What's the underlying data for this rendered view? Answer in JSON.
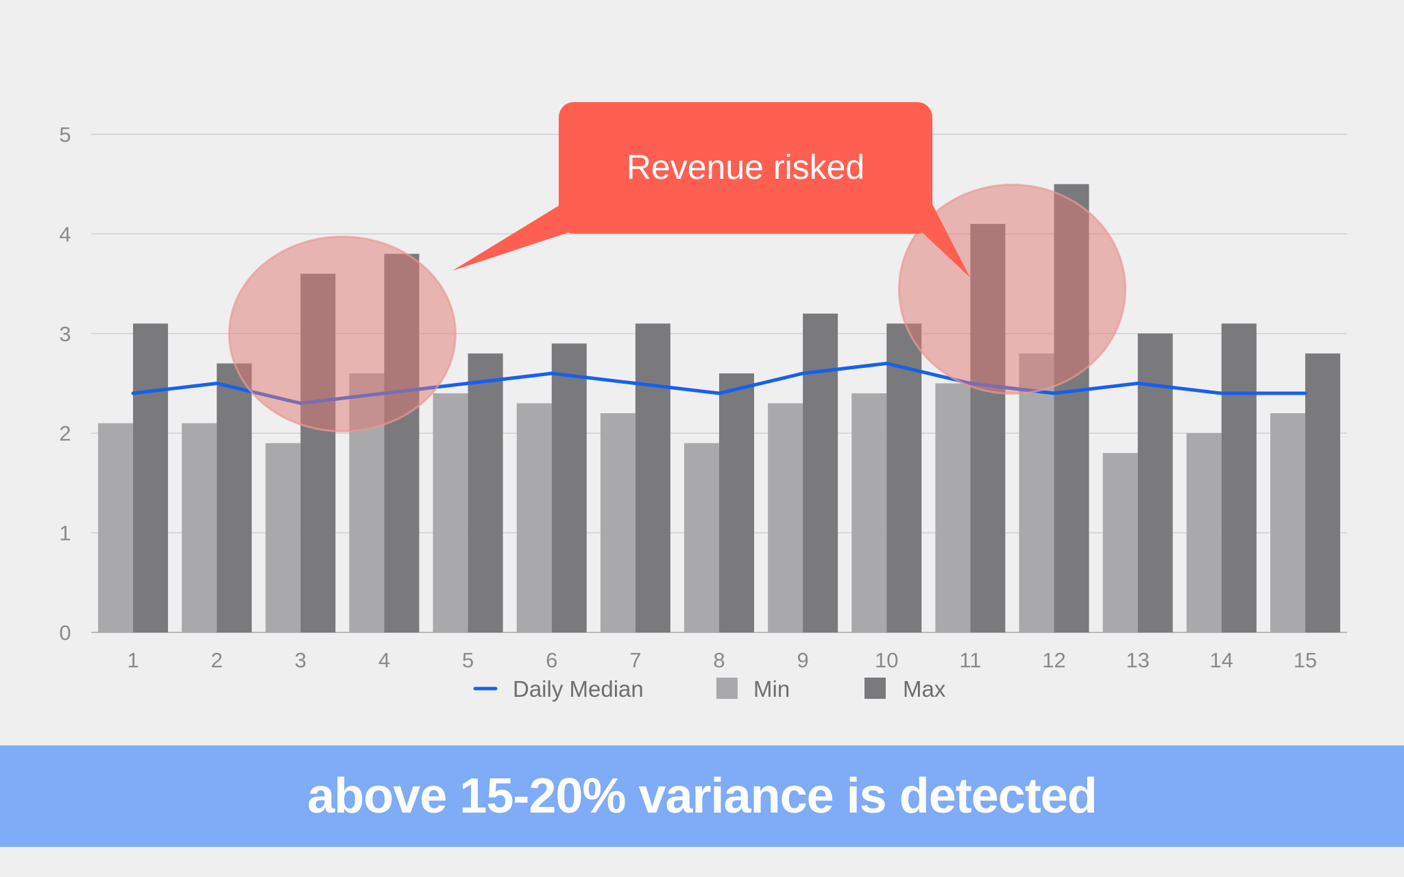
{
  "chart_data": {
    "type": "bar",
    "categories": [
      "1",
      "2",
      "3",
      "4",
      "5",
      "6",
      "7",
      "8",
      "9",
      "10",
      "11",
      "12",
      "13",
      "14",
      "15"
    ],
    "series": [
      {
        "name": "Min",
        "type": "bar",
        "color": "#a9a8aa",
        "values": [
          2.1,
          2.1,
          1.9,
          2.6,
          2.4,
          2.3,
          2.2,
          1.9,
          2.3,
          2.4,
          2.5,
          2.8,
          1.8,
          2.0,
          2.2
        ]
      },
      {
        "name": "Max",
        "type": "bar",
        "color": "#7a797b",
        "values": [
          3.1,
          2.7,
          3.6,
          3.8,
          2.8,
          2.9,
          3.1,
          2.6,
          3.2,
          3.1,
          4.1,
          4.5,
          3.0,
          3.1,
          2.8
        ]
      },
      {
        "name": "Daily Median",
        "type": "line",
        "color": "#1560ef",
        "values": [
          2.4,
          2.5,
          2.3,
          2.4,
          2.5,
          2.6,
          2.5,
          2.4,
          2.6,
          2.7,
          2.5,
          2.4,
          2.5,
          2.4,
          2.4
        ]
      }
    ],
    "ylim": [
      0,
      5
    ],
    "yticks": [
      "0",
      "1",
      "2",
      "3",
      "4",
      "5"
    ],
    "grid": true,
    "legend_position": "bottom",
    "highlights": [
      {
        "categories": [
          "3",
          "4"
        ],
        "color": "#e07a76"
      },
      {
        "categories": [
          "11",
          "12"
        ],
        "color": "#e07a76"
      }
    ],
    "annotation": {
      "text": "Revenue risked",
      "color": "#ff5f50"
    }
  },
  "banner": {
    "text": "above 15-20% variance is detected",
    "color": "#7fabf7"
  }
}
